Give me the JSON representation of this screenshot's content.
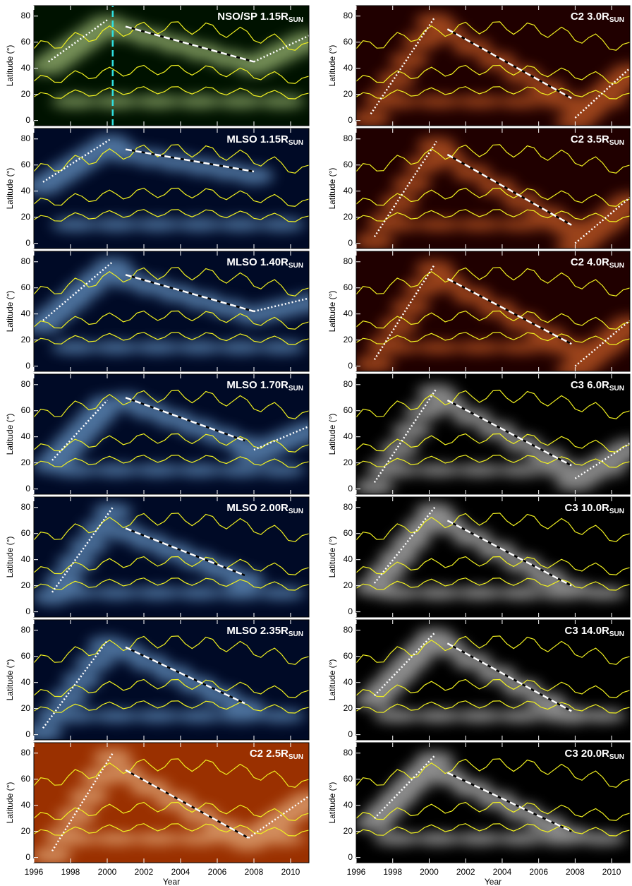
{
  "chart_data": [
    {
      "type": "heatmap",
      "title": "NSO/SP 1.15R",
      "title_sub": "SUN",
      "ylabel": "Latitude (°)",
      "xlim": [
        1996,
        2011
      ],
      "ylim": [
        -4,
        88
      ],
      "xticks": [
        1996,
        1998,
        2000,
        2002,
        2004,
        2006,
        2008,
        2010
      ],
      "yticks": [
        0,
        20,
        40,
        60,
        80
      ],
      "colormap": [
        "#001200",
        "#d8f8a0"
      ],
      "fits": [
        {
          "style": "dotted",
          "color": "#ffffff",
          "x": [
            1996.8,
            2000
          ],
          "y": [
            45,
            77
          ]
        },
        {
          "style": "dashed",
          "color": "#ffffff",
          "x": [
            2001,
            2008
          ],
          "y": [
            72,
            45
          ]
        },
        {
          "style": "dotted",
          "color": "#ffffff",
          "x": [
            2008,
            2011
          ],
          "y": [
            45,
            65
          ]
        },
        {
          "style": "dashed",
          "color": "#30e0e0",
          "x": [
            2000.3,
            2000.3
          ],
          "y": [
            -4,
            88
          ]
        }
      ]
    },
    {
      "type": "heatmap",
      "title": "MLSO 1.15R",
      "title_sub": "SUN",
      "ylabel": "Latitude (°)",
      "xlim": [
        1996,
        2011
      ],
      "ylim": [
        -4,
        88
      ],
      "xticks": [
        1996,
        1998,
        2000,
        2002,
        2004,
        2006,
        2008,
        2010
      ],
      "yticks": [
        0,
        20,
        40,
        60,
        80
      ],
      "colormap": [
        "#000a26",
        "#8cc8ff"
      ],
      "fits": [
        {
          "style": "dotted",
          "color": "#ffffff",
          "x": [
            1996.5,
            2000.2
          ],
          "y": [
            47,
            80
          ]
        },
        {
          "style": "dashed",
          "color": "#ffffff",
          "x": [
            2001,
            2008
          ],
          "y": [
            72,
            55
          ]
        }
      ]
    },
    {
      "type": "heatmap",
      "title": "MLSO 1.40R",
      "title_sub": "SUN",
      "ylabel": "Latitude (°)",
      "xlim": [
        1996,
        2011
      ],
      "ylim": [
        -4,
        88
      ],
      "xticks": [
        1996,
        1998,
        2000,
        2002,
        2004,
        2006,
        2008,
        2010
      ],
      "yticks": [
        0,
        20,
        40,
        60,
        80
      ],
      "colormap": [
        "#000a26",
        "#8cc8ff"
      ],
      "fits": [
        {
          "style": "dotted",
          "color": "#ffffff",
          "x": [
            1996.5,
            2000.3
          ],
          "y": [
            35,
            80
          ]
        },
        {
          "style": "dashed",
          "color": "#ffffff",
          "x": [
            2001,
            2008
          ],
          "y": [
            70,
            42
          ]
        },
        {
          "style": "dotted",
          "color": "#ffffff",
          "x": [
            2008,
            2011
          ],
          "y": [
            42,
            52
          ]
        }
      ]
    },
    {
      "type": "heatmap",
      "title": "MLSO 1.70R",
      "title_sub": "SUN",
      "ylabel": "Latitude (°)",
      "xlim": [
        1996,
        2011
      ],
      "ylim": [
        -4,
        88
      ],
      "xticks": [
        1996,
        1998,
        2000,
        2002,
        2004,
        2006,
        2008,
        2010
      ],
      "yticks": [
        0,
        20,
        40,
        60,
        80
      ],
      "colormap": [
        "#000a26",
        "#8cc8ff"
      ],
      "fits": [
        {
          "style": "dotted",
          "color": "#ffffff",
          "x": [
            1997,
            2000
          ],
          "y": [
            22,
            68
          ]
        },
        {
          "style": "dashed",
          "color": "#ffffff",
          "x": [
            2001,
            2007.5
          ],
          "y": [
            70,
            37
          ]
        },
        {
          "style": "dotted",
          "color": "#ffffff",
          "x": [
            2008,
            2011
          ],
          "y": [
            30,
            48
          ]
        }
      ]
    },
    {
      "type": "heatmap",
      "title": "MLSO 2.00R",
      "title_sub": "SUN",
      "ylabel": "Latitude (°)",
      "xlim": [
        1996,
        2011
      ],
      "ylim": [
        -4,
        88
      ],
      "xticks": [
        1996,
        1998,
        2000,
        2002,
        2004,
        2006,
        2008,
        2010
      ],
      "yticks": [
        0,
        20,
        40,
        60,
        80
      ],
      "colormap": [
        "#000a26",
        "#8cc8ff"
      ],
      "fits": [
        {
          "style": "dotted",
          "color": "#ffffff",
          "x": [
            1997,
            2000.3
          ],
          "y": [
            15,
            80
          ]
        },
        {
          "style": "dashed",
          "color": "#ffffff",
          "x": [
            2001,
            2007.5
          ],
          "y": [
            64,
            28
          ]
        }
      ]
    },
    {
      "type": "heatmap",
      "title": "MLSO 2.35R",
      "title_sub": "SUN",
      "ylabel": "Latitude (°)",
      "xlim": [
        1996,
        2011
      ],
      "ylim": [
        -4,
        88
      ],
      "xticks": [
        1996,
        1998,
        2000,
        2002,
        2004,
        2006,
        2008,
        2010
      ],
      "yticks": [
        0,
        20,
        40,
        60,
        80
      ],
      "colormap": [
        "#000a26",
        "#8cc8ff"
      ],
      "fits": [
        {
          "style": "dotted",
          "color": "#ffffff",
          "x": [
            1996.5,
            2000
          ],
          "y": [
            5,
            72
          ]
        },
        {
          "style": "dashed",
          "color": "#ffffff",
          "x": [
            2001,
            2007.5
          ],
          "y": [
            67,
            24
          ]
        }
      ]
    },
    {
      "type": "heatmap",
      "title": "C2 2.5R",
      "title_sub": "SUN",
      "ylabel": "Latitude (°)",
      "xlabel": "Year",
      "xlim": [
        1996,
        2011
      ],
      "ylim": [
        -4,
        88
      ],
      "xticks": [
        1996,
        1998,
        2000,
        2002,
        2004,
        2006,
        2008,
        2010
      ],
      "yticks": [
        0,
        20,
        40,
        60,
        80
      ],
      "colormap": [
        "#9a3000",
        "#ffd8a8"
      ],
      "fits": [
        {
          "style": "dotted",
          "color": "#ffffff",
          "x": [
            1997,
            2000.3
          ],
          "y": [
            5,
            80
          ]
        },
        {
          "style": "dashed",
          "color": "#ffffff",
          "x": [
            2001,
            2007.7
          ],
          "y": [
            67,
            15
          ]
        },
        {
          "style": "dotted",
          "color": "#ffffff",
          "x": [
            2007.7,
            2011
          ],
          "y": [
            15,
            47
          ]
        }
      ]
    },
    {
      "type": "heatmap",
      "title": "C2 3.0R",
      "title_sub": "SUN",
      "ylabel": "Latitude (°)",
      "xlim": [
        1996,
        2011
      ],
      "ylim": [
        -4,
        88
      ],
      "xticks": [
        1996,
        1998,
        2000,
        2002,
        2004,
        2006,
        2008,
        2010
      ],
      "yticks": [
        0,
        20,
        40,
        60,
        80
      ],
      "colormap": [
        "#200000",
        "#ff7a30"
      ],
      "fits": [
        {
          "style": "dotted",
          "color": "#ffffff",
          "x": [
            1996.8,
            2000.3
          ],
          "y": [
            5,
            79
          ]
        },
        {
          "style": "dashed",
          "color": "#ffffff",
          "x": [
            2001,
            2007.8
          ],
          "y": [
            70,
            17
          ]
        },
        {
          "style": "dotted",
          "color": "#ffffff",
          "x": [
            2008,
            2011
          ],
          "y": [
            2,
            40
          ]
        }
      ]
    },
    {
      "type": "heatmap",
      "title": "C2 3.5R",
      "title_sub": "SUN",
      "ylabel": "Latitude (°)",
      "xlim": [
        1996,
        2011
      ],
      "ylim": [
        -4,
        88
      ],
      "xticks": [
        1996,
        1998,
        2000,
        2002,
        2004,
        2006,
        2008,
        2010
      ],
      "yticks": [
        0,
        20,
        40,
        60,
        80
      ],
      "colormap": [
        "#200000",
        "#ff7a30"
      ],
      "fits": [
        {
          "style": "dotted",
          "color": "#ffffff",
          "x": [
            1997,
            2000.4
          ],
          "y": [
            5,
            78
          ]
        },
        {
          "style": "dashed",
          "color": "#ffffff",
          "x": [
            2001,
            2007.8
          ],
          "y": [
            68,
            14
          ]
        },
        {
          "style": "dotted",
          "color": "#ffffff",
          "x": [
            2008,
            2011
          ],
          "y": [
            0,
            35
          ]
        }
      ]
    },
    {
      "type": "heatmap",
      "title": "C2 4.0R",
      "title_sub": "SUN",
      "ylabel": "Latitude (°)",
      "xlim": [
        1996,
        2011
      ],
      "ylim": [
        -4,
        88
      ],
      "xticks": [
        1996,
        1998,
        2000,
        2002,
        2004,
        2006,
        2008,
        2010
      ],
      "yticks": [
        0,
        20,
        40,
        60,
        80
      ],
      "colormap": [
        "#200000",
        "#ff7a30"
      ],
      "fits": [
        {
          "style": "dotted",
          "color": "#ffffff",
          "x": [
            1997,
            2000.3
          ],
          "y": [
            5,
            78
          ]
        },
        {
          "style": "dashed",
          "color": "#ffffff",
          "x": [
            2001,
            2007.8
          ],
          "y": [
            67,
            17
          ]
        },
        {
          "style": "dotted",
          "color": "#ffffff",
          "x": [
            2008,
            2011
          ],
          "y": [
            0,
            35
          ]
        }
      ]
    },
    {
      "type": "heatmap",
      "title": "C3 6.0R",
      "title_sub": "SUN",
      "ylabel": "Latitude (°)",
      "xlim": [
        1996,
        2011
      ],
      "ylim": [
        -4,
        88
      ],
      "xticks": [
        1996,
        1998,
        2000,
        2002,
        2004,
        2006,
        2008,
        2010
      ],
      "yticks": [
        0,
        20,
        40,
        60,
        80
      ],
      "colormap": [
        "#000000",
        "#f0f0f0"
      ],
      "fits": [
        {
          "style": "dotted",
          "color": "#ffffff",
          "x": [
            1997,
            2000.4
          ],
          "y": [
            5,
            77
          ]
        },
        {
          "style": "dashed",
          "color": "#ffffff",
          "x": [
            2001,
            2007.8
          ],
          "y": [
            68,
            18
          ]
        },
        {
          "style": "dotted",
          "color": "#ffffff",
          "x": [
            2008,
            2011
          ],
          "y": [
            8,
            35
          ]
        }
      ]
    },
    {
      "type": "heatmap",
      "title": "C3 10.0R",
      "title_sub": "SUN",
      "ylabel": "Latitude (°)",
      "xlim": [
        1996,
        2011
      ],
      "ylim": [
        -4,
        88
      ],
      "xticks": [
        1996,
        1998,
        2000,
        2002,
        2004,
        2006,
        2008,
        2010
      ],
      "yticks": [
        0,
        20,
        40,
        60,
        80
      ],
      "colormap": [
        "#000000",
        "#ffffff"
      ],
      "fits": [
        {
          "style": "dotted",
          "color": "#ffffff",
          "x": [
            1997,
            2000.3
          ],
          "y": [
            22,
            80
          ]
        },
        {
          "style": "dashed",
          "color": "#ffffff",
          "x": [
            2001,
            2007.8
          ],
          "y": [
            70,
            20
          ]
        }
      ]
    },
    {
      "type": "heatmap",
      "title": "C3 14.0R",
      "title_sub": "SUN",
      "ylabel": "Latitude (°)",
      "xlim": [
        1996,
        2011
      ],
      "ylim": [
        -4,
        88
      ],
      "xticks": [
        1996,
        1998,
        2000,
        2002,
        2004,
        2006,
        2008,
        2010
      ],
      "yticks": [
        0,
        20,
        40,
        60,
        80
      ],
      "colormap": [
        "#000000",
        "#ffffff"
      ],
      "fits": [
        {
          "style": "dotted",
          "color": "#ffffff",
          "x": [
            1997,
            2000.3
          ],
          "y": [
            30,
            78
          ]
        },
        {
          "style": "dashed",
          "color": "#ffffff",
          "x": [
            2001,
            2007.8
          ],
          "y": [
            70,
            18
          ]
        }
      ]
    },
    {
      "type": "heatmap",
      "title": "C3 20.0R",
      "title_sub": "SUN",
      "ylabel": "Latitude (°)",
      "xlabel": "Year",
      "xlim": [
        1996,
        2011
      ],
      "ylim": [
        -4,
        88
      ],
      "xticks": [
        1996,
        1998,
        2000,
        2002,
        2004,
        2006,
        2008,
        2010
      ],
      "yticks": [
        0,
        20,
        40,
        60,
        80
      ],
      "colormap": [
        "#000000",
        "#ffffff"
      ],
      "fits": [
        {
          "style": "dotted",
          "color": "#ffffff",
          "x": [
            1997,
            2000.3
          ],
          "y": [
            30,
            78
          ]
        },
        {
          "style": "dashed",
          "color": "#ffffff",
          "x": [
            2001,
            2007.8
          ],
          "y": [
            65,
            20
          ]
        }
      ]
    }
  ]
}
